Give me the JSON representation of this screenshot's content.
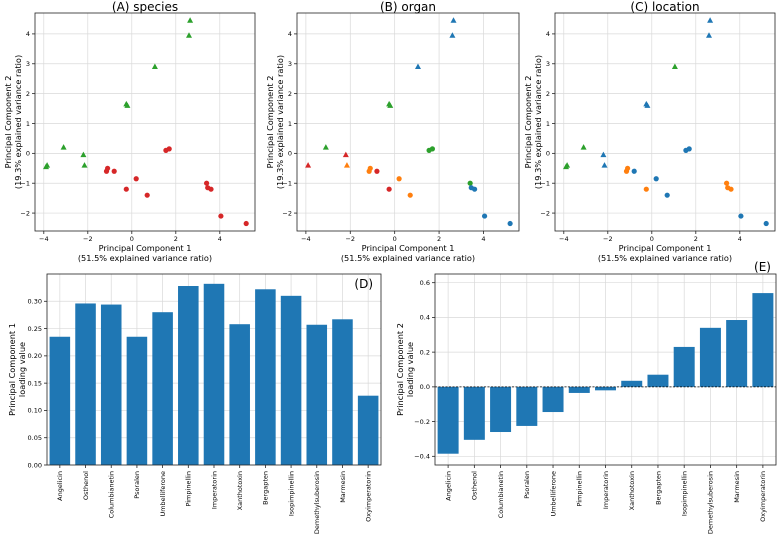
{
  "colors": {
    "red": "#d62728",
    "green": "#2ca02c",
    "blue": "#1f77b4",
    "orange": "#ff7f0e",
    "bar": "#1f77b4"
  },
  "chart_data": [
    {
      "type": "scatter",
      "title": "(A) species",
      "xlabel": "Principal Component 1\n(51.5% explained variance ratio)",
      "ylabel": "Principal Component 2\n(19.3% explained variance ratio)",
      "xlim": [
        -4.4,
        5.6
      ],
      "ylim": [
        -2.6,
        4.7
      ],
      "xticks": [
        -4,
        -2,
        0,
        2,
        4
      ],
      "yticks": [
        -2,
        -1,
        0,
        1,
        2,
        3,
        4
      ],
      "grid": true,
      "points": [
        {
          "x": -3.9,
          "y": -0.45,
          "marker": "triangle",
          "color": "green"
        },
        {
          "x": -3.85,
          "y": -0.4,
          "marker": "triangle",
          "color": "green"
        },
        {
          "x": -3.1,
          "y": 0.2,
          "marker": "triangle",
          "color": "green"
        },
        {
          "x": -2.2,
          "y": -0.05,
          "marker": "triangle",
          "color": "green"
        },
        {
          "x": -2.15,
          "y": -0.4,
          "marker": "triangle",
          "color": "green"
        },
        {
          "x": -0.25,
          "y": 1.65,
          "marker": "triangle",
          "color": "green"
        },
        {
          "x": -0.2,
          "y": 1.6,
          "marker": "triangle",
          "color": "green"
        },
        {
          "x": 1.05,
          "y": 2.9,
          "marker": "triangle",
          "color": "green"
        },
        {
          "x": 2.65,
          "y": 4.45,
          "marker": "triangle",
          "color": "green"
        },
        {
          "x": 2.6,
          "y": 3.95,
          "marker": "triangle",
          "color": "green"
        },
        {
          "x": -1.1,
          "y": -0.5,
          "marker": "circle",
          "color": "red"
        },
        {
          "x": -1.15,
          "y": -0.6,
          "marker": "circle",
          "color": "red"
        },
        {
          "x": -0.8,
          "y": -0.6,
          "marker": "circle",
          "color": "red"
        },
        {
          "x": -0.25,
          "y": -1.2,
          "marker": "circle",
          "color": "red"
        },
        {
          "x": 0.2,
          "y": -0.85,
          "marker": "circle",
          "color": "red"
        },
        {
          "x": 0.7,
          "y": -1.4,
          "marker": "circle",
          "color": "red"
        },
        {
          "x": 1.55,
          "y": 0.1,
          "marker": "circle",
          "color": "red"
        },
        {
          "x": 1.7,
          "y": 0.15,
          "marker": "circle",
          "color": "red"
        },
        {
          "x": 3.4,
          "y": -1.0,
          "marker": "circle",
          "color": "red"
        },
        {
          "x": 3.45,
          "y": -1.15,
          "marker": "circle",
          "color": "red"
        },
        {
          "x": 3.6,
          "y": -1.2,
          "marker": "circle",
          "color": "red"
        },
        {
          "x": 4.05,
          "y": -2.1,
          "marker": "circle",
          "color": "red"
        },
        {
          "x": 5.2,
          "y": -2.35,
          "marker": "circle",
          "color": "red"
        }
      ]
    },
    {
      "type": "scatter",
      "title": "(B) organ",
      "xlabel": "Principal Component 1\n(51.5% explained variance ratio)",
      "ylabel": "Principal Component 2\n(19.3% explained variance ratio)",
      "xlim": [
        -4.4,
        5.6
      ],
      "ylim": [
        -2.6,
        4.7
      ],
      "xticks": [
        -4,
        -2,
        0,
        2,
        4
      ],
      "yticks": [
        -2,
        -1,
        0,
        1,
        2,
        3,
        4
      ],
      "grid": true,
      "points": [
        {
          "x": -3.9,
          "y": -0.4,
          "marker": "triangle",
          "color": "red"
        },
        {
          "x": -3.1,
          "y": 0.2,
          "marker": "triangle",
          "color": "green"
        },
        {
          "x": -2.2,
          "y": -0.05,
          "marker": "triangle",
          "color": "red"
        },
        {
          "x": -2.15,
          "y": -0.4,
          "marker": "triangle",
          "color": "orange"
        },
        {
          "x": -0.25,
          "y": 1.65,
          "marker": "triangle",
          "color": "green"
        },
        {
          "x": -0.2,
          "y": 1.6,
          "marker": "triangle",
          "color": "green"
        },
        {
          "x": 1.05,
          "y": 2.9,
          "marker": "triangle",
          "color": "blue"
        },
        {
          "x": 2.65,
          "y": 4.45,
          "marker": "triangle",
          "color": "blue"
        },
        {
          "x": 2.6,
          "y": 3.95,
          "marker": "triangle",
          "color": "blue"
        },
        {
          "x": -1.1,
          "y": -0.5,
          "marker": "circle",
          "color": "orange"
        },
        {
          "x": -1.15,
          "y": -0.6,
          "marker": "circle",
          "color": "orange"
        },
        {
          "x": -0.8,
          "y": -0.6,
          "marker": "circle",
          "color": "red"
        },
        {
          "x": -0.25,
          "y": -1.2,
          "marker": "circle",
          "color": "red"
        },
        {
          "x": 0.2,
          "y": -0.85,
          "marker": "circle",
          "color": "orange"
        },
        {
          "x": 0.7,
          "y": -1.4,
          "marker": "circle",
          "color": "orange"
        },
        {
          "x": 1.55,
          "y": 0.1,
          "marker": "circle",
          "color": "green"
        },
        {
          "x": 1.7,
          "y": 0.15,
          "marker": "circle",
          "color": "green"
        },
        {
          "x": 3.4,
          "y": -1.0,
          "marker": "circle",
          "color": "green"
        },
        {
          "x": 3.45,
          "y": -1.15,
          "marker": "circle",
          "color": "blue"
        },
        {
          "x": 3.6,
          "y": -1.2,
          "marker": "circle",
          "color": "blue"
        },
        {
          "x": 4.05,
          "y": -2.1,
          "marker": "circle",
          "color": "blue"
        },
        {
          "x": 5.2,
          "y": -2.35,
          "marker": "circle",
          "color": "blue"
        }
      ]
    },
    {
      "type": "scatter",
      "title": "(C) location",
      "xlabel": "Principal Component 1\n(51.5% explained variance ratio)",
      "ylabel": "Principal Component 2\n(19.3% explained variance ratio)",
      "xlim": [
        -4.4,
        5.6
      ],
      "ylim": [
        -2.6,
        4.7
      ],
      "xticks": [
        -4,
        -2,
        0,
        2,
        4
      ],
      "yticks": [
        -2,
        -1,
        0,
        1,
        2,
        3,
        4
      ],
      "grid": true,
      "points": [
        {
          "x": -3.9,
          "y": -0.45,
          "marker": "triangle",
          "color": "green"
        },
        {
          "x": -3.85,
          "y": -0.4,
          "marker": "triangle",
          "color": "green"
        },
        {
          "x": -3.1,
          "y": 0.2,
          "marker": "triangle",
          "color": "green"
        },
        {
          "x": -2.2,
          "y": -0.05,
          "marker": "triangle",
          "color": "blue"
        },
        {
          "x": -2.15,
          "y": -0.4,
          "marker": "triangle",
          "color": "blue"
        },
        {
          "x": -0.25,
          "y": 1.65,
          "marker": "triangle",
          "color": "blue"
        },
        {
          "x": -0.2,
          "y": 1.6,
          "marker": "triangle",
          "color": "blue"
        },
        {
          "x": 1.05,
          "y": 2.9,
          "marker": "triangle",
          "color": "green"
        },
        {
          "x": 2.65,
          "y": 4.45,
          "marker": "triangle",
          "color": "blue"
        },
        {
          "x": 2.6,
          "y": 3.95,
          "marker": "triangle",
          "color": "blue"
        },
        {
          "x": -1.1,
          "y": -0.5,
          "marker": "circle",
          "color": "orange"
        },
        {
          "x": -1.15,
          "y": -0.6,
          "marker": "circle",
          "color": "orange"
        },
        {
          "x": -0.8,
          "y": -0.6,
          "marker": "circle",
          "color": "blue"
        },
        {
          "x": -0.25,
          "y": -1.2,
          "marker": "circle",
          "color": "orange"
        },
        {
          "x": 0.2,
          "y": -0.85,
          "marker": "circle",
          "color": "blue"
        },
        {
          "x": 0.7,
          "y": -1.4,
          "marker": "circle",
          "color": "blue"
        },
        {
          "x": 1.55,
          "y": 0.1,
          "marker": "circle",
          "color": "blue"
        },
        {
          "x": 1.7,
          "y": 0.15,
          "marker": "circle",
          "color": "blue"
        },
        {
          "x": 3.4,
          "y": -1.0,
          "marker": "circle",
          "color": "orange"
        },
        {
          "x": 3.45,
          "y": -1.15,
          "marker": "circle",
          "color": "orange"
        },
        {
          "x": 3.6,
          "y": -1.2,
          "marker": "circle",
          "color": "orange"
        },
        {
          "x": 4.05,
          "y": -2.1,
          "marker": "circle",
          "color": "blue"
        },
        {
          "x": 5.2,
          "y": -2.35,
          "marker": "circle",
          "color": "blue"
        }
      ]
    },
    {
      "type": "bar",
      "title": "(D)",
      "ylabel": "Principal Component 1\nloading value",
      "categories": [
        "Angelicin",
        "Osthenol",
        "Columbianetin",
        "Psoralen",
        "Umbelliferone",
        "Pimpinellin",
        "Imperatorin",
        "Xanthotoxin",
        "Bergapten",
        "Isopimpinellin",
        "Demethylsuberosin",
        "Marmesin",
        "Oxyimperatorin"
      ],
      "values": [
        0.235,
        0.296,
        0.294,
        0.235,
        0.28,
        0.328,
        0.332,
        0.258,
        0.322,
        0.31,
        0.257,
        0.267,
        0.127
      ],
      "ylim": [
        0,
        0.35
      ],
      "yticks": [
        0.0,
        0.05,
        0.1,
        0.15,
        0.2,
        0.25,
        0.3
      ],
      "ytick_labels": [
        "0.00",
        "0.05",
        "0.10",
        "0.15",
        "0.20",
        "0.25",
        "0.30"
      ],
      "grid": true
    },
    {
      "type": "bar",
      "title": "(E)",
      "ylabel": "Principal Component 2\nloading value",
      "categories": [
        "Angelicin",
        "Osthenol",
        "Columbianetin",
        "Psoralen",
        "Umbelliferone",
        "Pimpinellin",
        "Imperatorin",
        "Xanthotoxin",
        "Bergapten",
        "Isopimpinellin",
        "Demethylsuberosin",
        "Marmesin",
        "Oxyimperatorin"
      ],
      "values": [
        -0.385,
        -0.305,
        -0.26,
        -0.225,
        -0.145,
        -0.035,
        -0.02,
        0.035,
        0.07,
        0.23,
        0.34,
        0.385,
        0.54
      ],
      "ylim": [
        -0.45,
        0.65
      ],
      "yticks": [
        -0.4,
        -0.2,
        0.0,
        0.2,
        0.4,
        0.6
      ],
      "ytick_labels": [
        "−0.4",
        "−0.2",
        "0.0",
        "0.2",
        "0.4",
        "0.6"
      ],
      "grid": true,
      "zero_line": "dashed"
    }
  ]
}
